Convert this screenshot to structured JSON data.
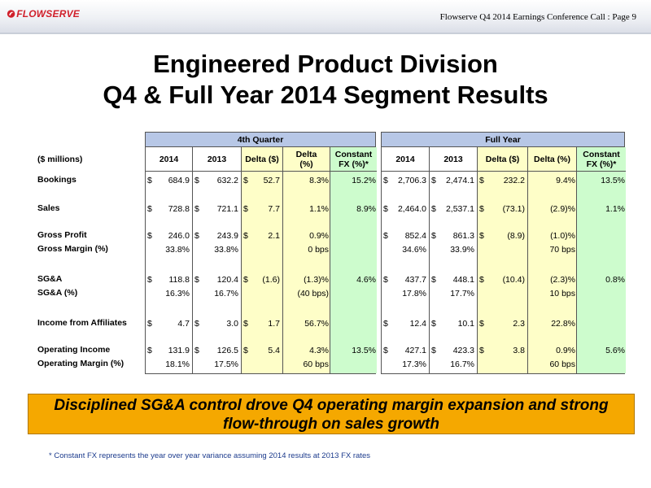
{
  "header": {
    "logo_text": "FLOWSERVE",
    "caption": "Flowserve Q4 2014 Earnings Conference Call  : Page 9"
  },
  "title": {
    "line1": "Engineered Product Division",
    "line2": "Q4 & Full Year 2014 Segment Results"
  },
  "table": {
    "units_label": "($ millions)",
    "quarter_header": "4th Quarter",
    "fullyear_header": "Full Year",
    "columns": [
      "2014",
      "2013",
      "Delta ($)",
      "Delta\n(%)",
      "Constant\nFX (%)*"
    ],
    "fy_columns": [
      "2014",
      "2013",
      "Delta ($)",
      "Delta (%)",
      "Constant\nFX (%)*"
    ],
    "rows": [
      {
        "label": "Bookings",
        "q": [
          "684.9",
          "632.2",
          "52.7",
          "8.3%",
          "15.2%"
        ],
        "fy": [
          "2,706.3",
          "2,474.1",
          "232.2",
          "9.4%",
          "13.5%"
        ],
        "q_dollar": [
          true,
          true,
          true
        ],
        "fy_dollar": [
          true,
          true,
          true
        ]
      },
      {
        "label": "Sales",
        "q": [
          "728.8",
          "721.1",
          "7.7",
          "1.1%",
          "8.9%"
        ],
        "fy": [
          "2,464.0",
          "2,537.1",
          "(73.1)",
          "(2.9)%",
          "1.1%"
        ],
        "q_dollar": [
          true,
          true,
          true
        ],
        "fy_dollar": [
          true,
          true,
          true
        ]
      },
      {
        "label": "Gross Profit",
        "q": [
          "246.0",
          "243.9",
          "2.1",
          "0.9%",
          ""
        ],
        "fy": [
          "852.4",
          "861.3",
          "(8.9)",
          "(1.0)%",
          ""
        ],
        "q_dollar": [
          true,
          true,
          true
        ],
        "fy_dollar": [
          true,
          true,
          true
        ]
      },
      {
        "label": "Gross Margin (%)",
        "q": [
          "33.8%",
          "33.8%",
          "",
          "0 bps",
          ""
        ],
        "fy": [
          "34.6%",
          "33.9%",
          "",
          "70 bps",
          ""
        ],
        "q_dollar": [
          false,
          false,
          false
        ],
        "fy_dollar": [
          false,
          false,
          false
        ]
      },
      {
        "label": "SG&A",
        "q": [
          "118.8",
          "120.4",
          "(1.6)",
          "(1.3)%",
          "4.6%"
        ],
        "fy": [
          "437.7",
          "448.1",
          "(10.4)",
          "(2.3)%",
          "0.8%"
        ],
        "q_dollar": [
          true,
          true,
          true
        ],
        "fy_dollar": [
          true,
          true,
          true
        ]
      },
      {
        "label": "SG&A (%)",
        "q": [
          "16.3%",
          "16.7%",
          "",
          "(40 bps)",
          ""
        ],
        "fy": [
          "17.8%",
          "17.7%",
          "",
          "10 bps",
          ""
        ],
        "q_dollar": [
          false,
          false,
          false
        ],
        "fy_dollar": [
          false,
          false,
          false
        ]
      },
      {
        "label": "Income from Affiliates",
        "q": [
          "4.7",
          "3.0",
          "1.7",
          "56.7%",
          ""
        ],
        "fy": [
          "12.4",
          "10.1",
          "2.3",
          "22.8%",
          ""
        ],
        "q_dollar": [
          true,
          true,
          true
        ],
        "fy_dollar": [
          true,
          true,
          true
        ]
      },
      {
        "label": "Operating Income",
        "q": [
          "131.9",
          "126.5",
          "5.4",
          "4.3%",
          "13.5%"
        ],
        "fy": [
          "427.1",
          "423.3",
          "3.8",
          "0.9%",
          "5.6%"
        ],
        "q_dollar": [
          true,
          true,
          true
        ],
        "fy_dollar": [
          true,
          true,
          true
        ]
      },
      {
        "label": "Operating Margin (%)",
        "q": [
          "18.1%",
          "17.5%",
          "",
          "60 bps",
          ""
        ],
        "fy": [
          "17.3%",
          "16.7%",
          "",
          "60 bps",
          ""
        ],
        "q_dollar": [
          false,
          false,
          false
        ],
        "fy_dollar": [
          false,
          false,
          false
        ]
      }
    ]
  },
  "banner": {
    "line1": "Disciplined SG&A control drove Q4 operating margin expansion and strong",
    "line2": "flow-through on sales growth"
  },
  "footnote": "* Constant FX represents the year over year variance assuming 2014 results at 2013 FX rates",
  "dollar_sign": "$",
  "colors": {
    "header_blue": "#b7c7e6",
    "delta_yellow": "#fefec8",
    "fx_green": "#cdfccd",
    "banner_orange": "#f5a800",
    "logo_red": "#d0202b"
  }
}
